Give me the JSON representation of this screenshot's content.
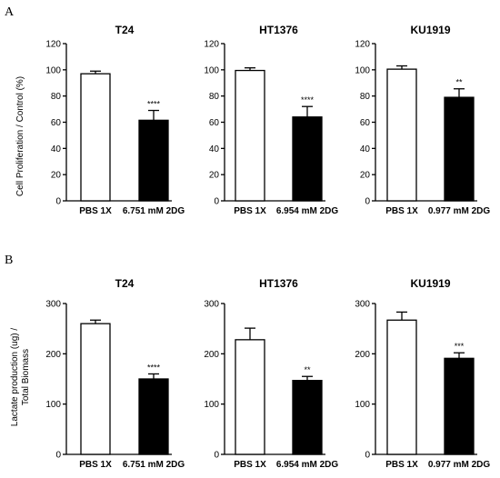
{
  "panels": [
    {
      "letter": "A",
      "ylabel": "Cell Proliferation / Control (%)",
      "ylabel_lines": [
        "Cell Proliferation / Control (%)"
      ]
    },
    {
      "letter": "B",
      "ylabel": "Lactate production (ug) / Total Biomass",
      "ylabel_lines": [
        "Lactate production (ug) /",
        "Total Biomass"
      ]
    }
  ],
  "chart_data": [
    {
      "type": "bar",
      "panel": "A",
      "title": "T24",
      "categories": [
        "PBS 1X",
        "6.751 mM 2DG"
      ],
      "values": [
        97,
        61.5
      ],
      "errors": [
        2,
        7.5
      ],
      "significance": [
        "",
        "****"
      ],
      "bar_colors": [
        "#ffffff",
        "#000000"
      ],
      "ylim": [
        0,
        120
      ],
      "yticks": [
        0,
        20,
        40,
        60,
        80,
        100,
        120
      ]
    },
    {
      "type": "bar",
      "panel": "A",
      "title": "HT1376",
      "categories": [
        "PBS 1X",
        "6.954 mM 2DG"
      ],
      "values": [
        99.5,
        64
      ],
      "errors": [
        2,
        8
      ],
      "significance": [
        "",
        "****"
      ],
      "bar_colors": [
        "#ffffff",
        "#000000"
      ],
      "ylim": [
        0,
        120
      ],
      "yticks": [
        0,
        20,
        40,
        60,
        80,
        100,
        120
      ]
    },
    {
      "type": "bar",
      "panel": "A",
      "title": "KU1919",
      "categories": [
        "PBS 1X",
        "0.977 mM 2DG"
      ],
      "values": [
        100.5,
        79
      ],
      "errors": [
        2.5,
        6.5
      ],
      "significance": [
        "",
        "**"
      ],
      "bar_colors": [
        "#ffffff",
        "#000000"
      ],
      "ylim": [
        0,
        120
      ],
      "yticks": [
        0,
        20,
        40,
        60,
        80,
        100,
        120
      ]
    },
    {
      "type": "bar",
      "panel": "B",
      "title": "T24",
      "categories": [
        "PBS 1X",
        "6.751 mM 2DG"
      ],
      "values": [
        260,
        150
      ],
      "errors": [
        7,
        10
      ],
      "significance": [
        "",
        "****"
      ],
      "bar_colors": [
        "#ffffff",
        "#000000"
      ],
      "ylim": [
        0,
        300
      ],
      "yticks": [
        0,
        100,
        200,
        300
      ]
    },
    {
      "type": "bar",
      "panel": "B",
      "title": "HT1376",
      "categories": [
        "PBS 1X",
        "6.954 mM 2DG"
      ],
      "values": [
        228,
        147
      ],
      "errors": [
        23,
        8
      ],
      "significance": [
        "",
        "**"
      ],
      "bar_colors": [
        "#ffffff",
        "#000000"
      ],
      "ylim": [
        0,
        300
      ],
      "yticks": [
        0,
        100,
        200,
        300
      ]
    },
    {
      "type": "bar",
      "panel": "B",
      "title": "KU1919",
      "categories": [
        "PBS 1X",
        "0.977 mM 2DG"
      ],
      "values": [
        267,
        191
      ],
      "errors": [
        16,
        11
      ],
      "significance": [
        "",
        "***"
      ],
      "bar_colors": [
        "#ffffff",
        "#000000"
      ],
      "ylim": [
        0,
        300
      ],
      "yticks": [
        0,
        100,
        200,
        300
      ]
    }
  ]
}
